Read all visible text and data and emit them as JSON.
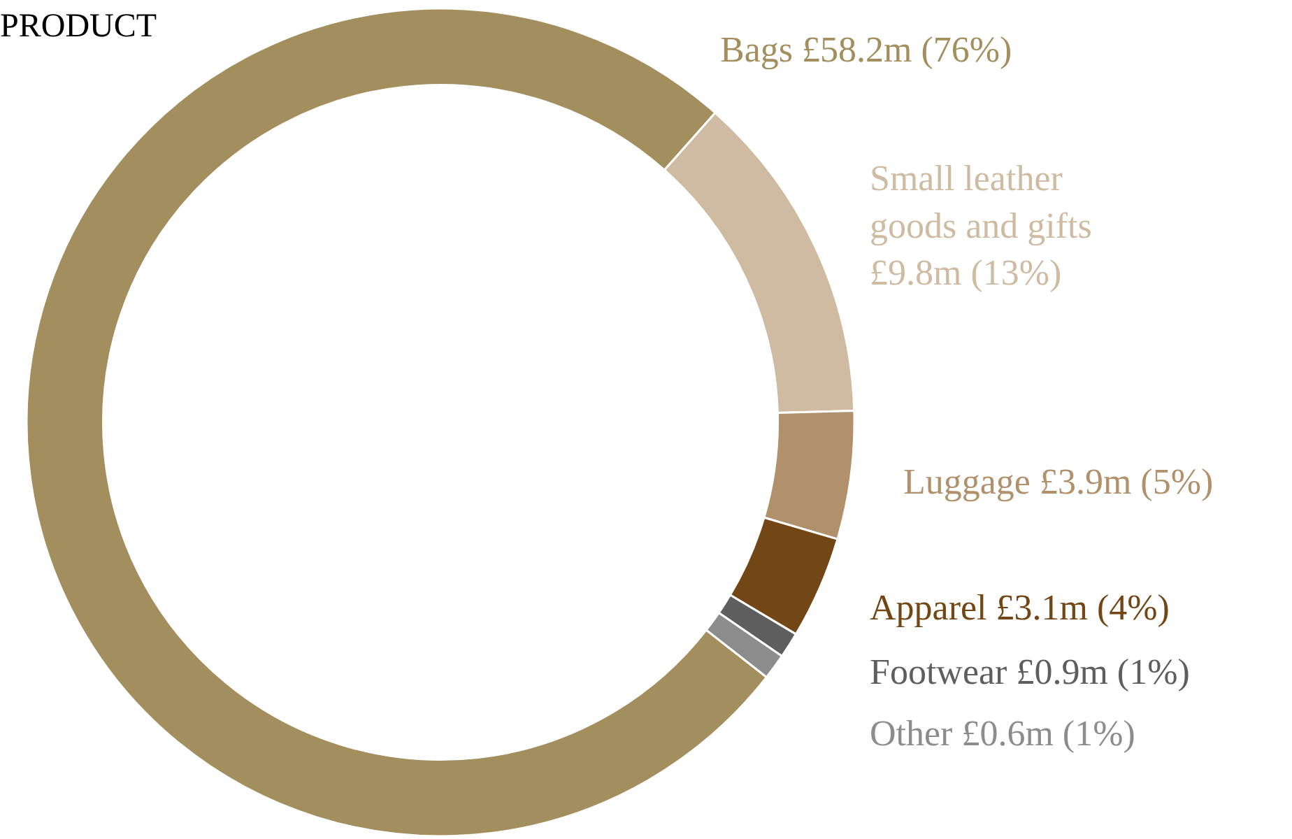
{
  "chart_data": {
    "type": "donut",
    "title": "PRODUCT",
    "categories": [
      "Bags",
      "Small leather goods and gifts",
      "Luggage",
      "Apparel",
      "Footwear",
      "Other"
    ],
    "values": [
      76,
      13,
      5,
      4,
      1,
      1
    ],
    "value_labels": [
      "£58.2m (76%)",
      "£9.8m (13%)",
      "£3.9m (5%)",
      "£3.1m (4%)",
      "£0.9m (1%)",
      "£0.6m (1%)"
    ],
    "colors": [
      "#a38f5e",
      "#cfbba1",
      "#b0916b",
      "#734615",
      "#5e5e5e",
      "#8c8c8c"
    ],
    "legend": false
  }
}
